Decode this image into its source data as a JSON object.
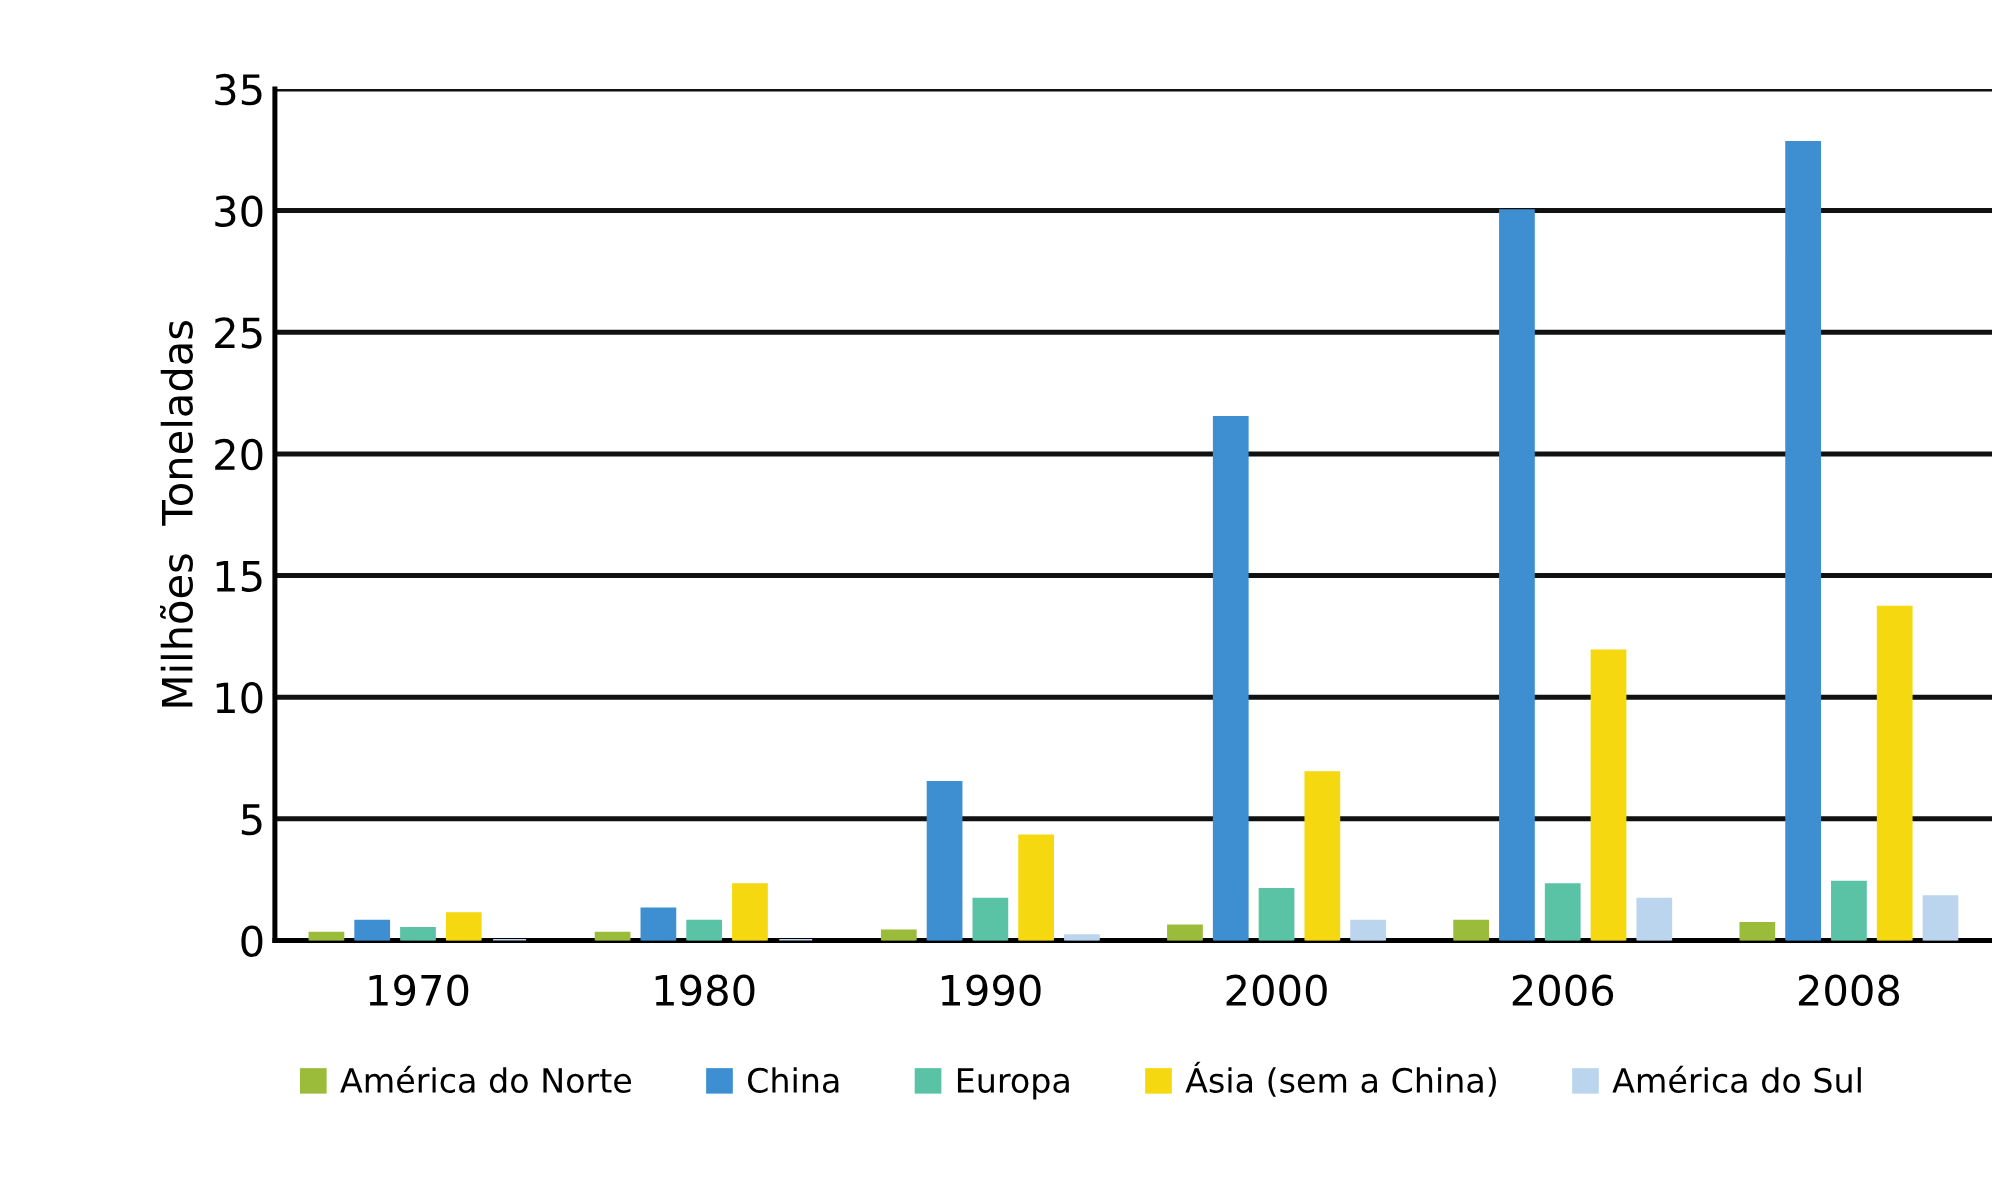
{
  "chart_data": {
    "type": "bar",
    "ylabel": "Milhões  Toneladas",
    "categories": [
      "1970",
      "1980",
      "1990",
      "2000",
      "2006",
      "2008"
    ],
    "series": [
      {
        "name": "América do Norte",
        "color": "#9bbb3b",
        "values": [
          0.3,
          0.3,
          0.4,
          0.6,
          0.8,
          0.7
        ]
      },
      {
        "name": "China",
        "color": "#3d8fd1",
        "values": [
          0.8,
          1.3,
          6.5,
          21.5,
          30,
          32.8
        ]
      },
      {
        "name": "Europa",
        "color": "#5ac2a5",
        "values": [
          0.5,
          0.8,
          1.7,
          2.1,
          2.3,
          2.4
        ]
      },
      {
        "name": "Ásia (sem a China)",
        "color": "#f5d80f",
        "values": [
          1.1,
          2.3,
          4.3,
          6.9,
          11.9,
          13.7
        ]
      },
      {
        "name": "América do Sul",
        "color": "#bcd5ee",
        "values": [
          0,
          0,
          0.2,
          0.8,
          1.7,
          1.8
        ]
      }
    ],
    "ylim": [
      0,
      35
    ],
    "yticks": [
      0,
      5,
      10,
      15,
      20,
      25,
      30,
      35
    ],
    "grid": "y",
    "legend": "bottom"
  }
}
